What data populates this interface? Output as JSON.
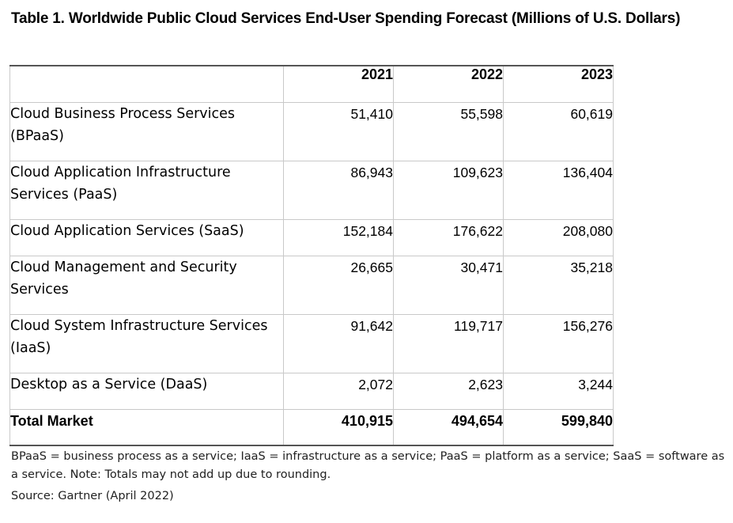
{
  "title": "Table 1. Worldwide Public Cloud Services End-User Spending Forecast (Millions of U.S. Dollars)",
  "table": {
    "header": [
      "",
      "2021",
      "2022",
      "2023"
    ],
    "rows": [
      {
        "label": "Cloud Business Process Services (BPaaS)",
        "values": [
          "51,410",
          "55,598",
          "60,619"
        ]
      },
      {
        "label": "Cloud Application Infrastructure Services (PaaS)",
        "values": [
          "86,943",
          "109,623",
          "136,404"
        ]
      },
      {
        "label": "Cloud Application Services (SaaS)",
        "values": [
          "152,184",
          "176,622",
          "208,080"
        ]
      },
      {
        "label": "Cloud Management and Security Services",
        "values": [
          "26,665",
          "30,471",
          "35,218"
        ]
      },
      {
        "label": "Cloud System Infrastructure Services (IaaS)",
        "values": [
          "91,642",
          "119,717",
          "156,276"
        ]
      },
      {
        "label": "Desktop as a Service (DaaS)",
        "values": [
          "2,072",
          "2,623",
          "3,244"
        ]
      }
    ],
    "total": {
      "label": "Total Market",
      "values": [
        "410,915",
        "494,654",
        "599,840"
      ]
    }
  },
  "footnote": "BPaaS = business process as a service; IaaS = infrastructure as a service; PaaS = platform as a service; SaaS = software as a service. Note: Totals may not add up due to rounding.",
  "source": "Source: Gartner (April 2022)"
}
